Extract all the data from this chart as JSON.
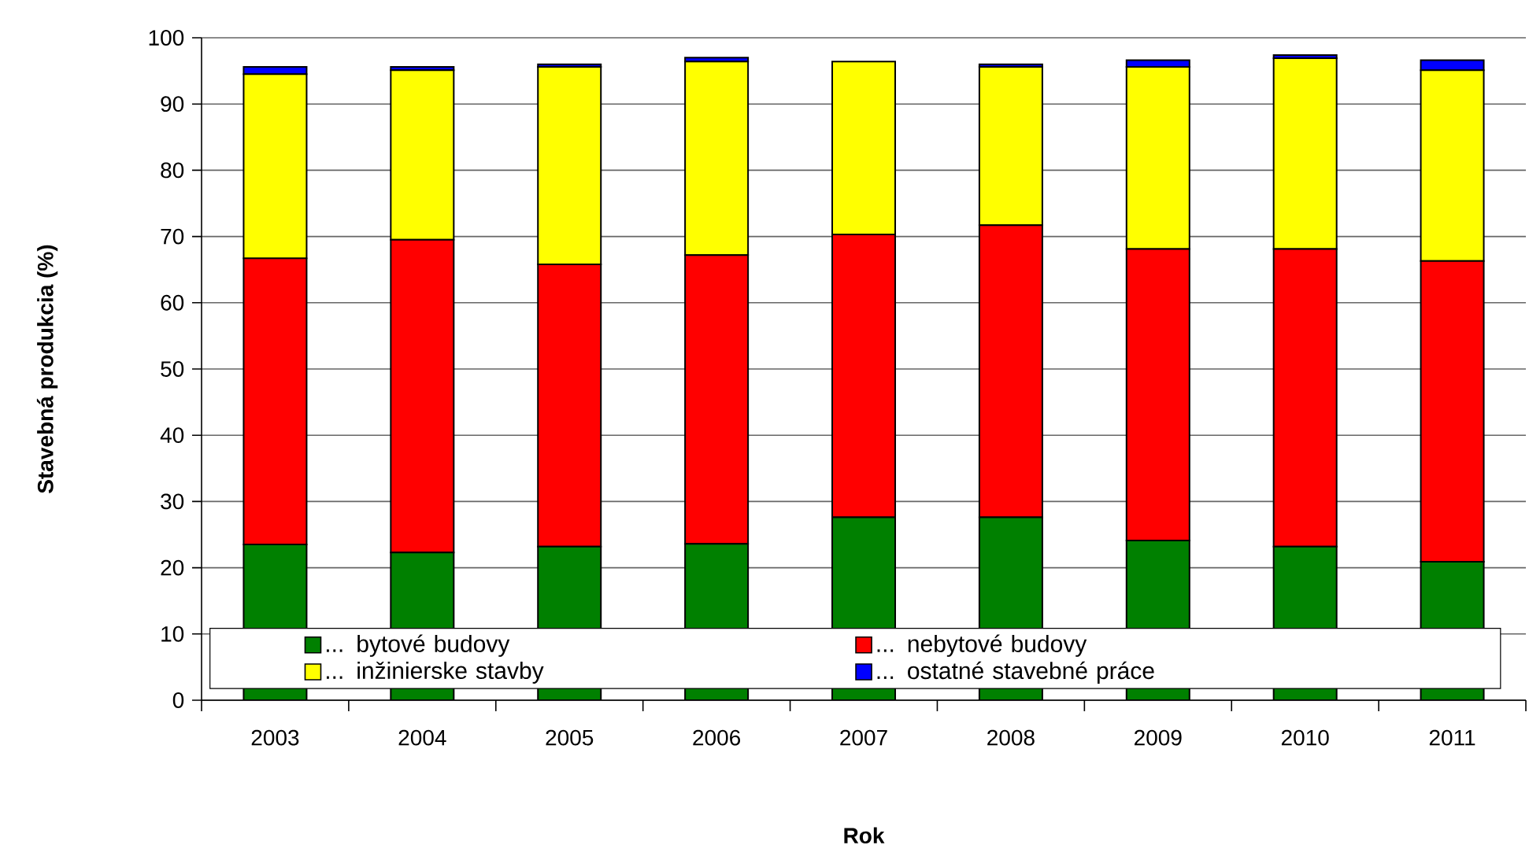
{
  "chart_data": {
    "type": "bar",
    "stacked": true,
    "xlabel": "Rok",
    "ylabel": "Stavebná produkcia (%)",
    "categories": [
      "2003",
      "2004",
      "2005",
      "2006",
      "2007",
      "2008",
      "2009",
      "2010",
      "2011"
    ],
    "series": [
      {
        "name": "... bytové budovy",
        "color": "#008000",
        "values": [
          23.5,
          22.3,
          23.2,
          23.6,
          27.6,
          27.6,
          24.1,
          23.2,
          20.9
        ]
      },
      {
        "name": "... nebytové budovy",
        "color": "#ff0000",
        "values": [
          43.2,
          47.2,
          42.6,
          43.6,
          42.7,
          44.1,
          44.0,
          44.9,
          45.4
        ]
      },
      {
        "name": "... inžinierske stavby",
        "color": "#ffff00",
        "values": [
          27.8,
          25.6,
          29.8,
          29.2,
          26.1,
          23.9,
          27.5,
          28.8,
          28.8
        ]
      },
      {
        "name": "... ostatné stavebné práce",
        "color": "#0000ff",
        "values": [
          1.1,
          0.5,
          0.4,
          0.6,
          null,
          0.4,
          1.0,
          0.5,
          1.5
        ]
      }
    ],
    "ylim": [
      0,
      100
    ],
    "yticks": [
      0,
      10,
      20,
      30,
      40,
      50,
      60,
      70,
      80,
      90,
      100
    ],
    "grid": "y",
    "legend": "bottom"
  }
}
